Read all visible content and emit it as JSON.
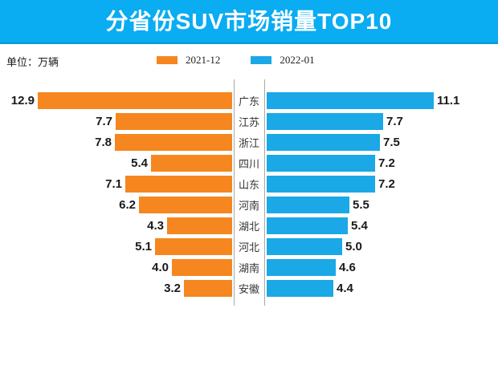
{
  "title": "分省份SUV市场销量TOP10",
  "unit_label": "单位：万辆",
  "legend": [
    {
      "label": "2021-12",
      "color": "#f6861f"
    },
    {
      "label": "2022-01",
      "color": "#1aa8e6"
    }
  ],
  "colors": {
    "banner_bg": "#0aacf2",
    "banner_edge": "#0a9edb",
    "left_bar": "#f6861f",
    "right_bar": "#1aa8e6",
    "axis_line": "#a8a8a8"
  },
  "chart_data": {
    "type": "bar",
    "layout": "tornado-horizontal",
    "title": "分省份SUV市场销量TOP10",
    "unit": "万辆",
    "legend_position": "top",
    "value_labels_shown": true,
    "xlim": [
      0,
      13
    ],
    "categories": [
      "广东",
      "江苏",
      "浙江",
      "四川",
      "山东",
      "河南",
      "湖北",
      "河北",
      "湖南",
      "安徽"
    ],
    "series": [
      {
        "name": "2021-12",
        "side": "left",
        "color": "#f6861f",
        "values": [
          12.9,
          7.7,
          7.8,
          5.4,
          7.1,
          6.2,
          4.3,
          5.1,
          4.0,
          3.2
        ],
        "value_labels": [
          "12.9",
          "7.7",
          "7.8",
          "5.4",
          "7.1",
          "6.2",
          "4.3",
          "5.1",
          "4.0",
          "3.2"
        ]
      },
      {
        "name": "2022-01",
        "side": "right",
        "color": "#1aa8e6",
        "values": [
          11.1,
          7.7,
          7.5,
          7.2,
          7.2,
          5.5,
          5.4,
          5.0,
          4.6,
          4.4
        ],
        "value_labels": [
          "11.1",
          "7.7",
          "7.5",
          "7.2",
          "7.2",
          "5.5",
          "5.4",
          "5.0",
          "4.6",
          "4.4"
        ]
      }
    ]
  }
}
